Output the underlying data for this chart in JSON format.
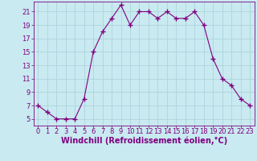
{
  "x": [
    0,
    1,
    2,
    3,
    4,
    5,
    6,
    7,
    8,
    9,
    10,
    11,
    12,
    13,
    14,
    15,
    16,
    17,
    18,
    19,
    20,
    21,
    22,
    23
  ],
  "y": [
    7,
    6,
    5,
    5,
    5,
    8,
    15,
    18,
    20,
    22,
    19,
    21,
    21,
    20,
    21,
    20,
    20,
    21,
    19,
    14,
    11,
    10,
    8,
    7
  ],
  "line_color": "#800080",
  "marker": "+",
  "marker_color": "#800080",
  "bg_color": "#c8eaf0",
  "grid_color": "#aed4dc",
  "xlabel": "Windchill (Refroidissement éolien,°C)",
  "xlabel_color": "#800080",
  "tick_color": "#800080",
  "spine_color": "#800080",
  "xlim": [
    -0.5,
    23.5
  ],
  "ylim": [
    4,
    22.5
  ],
  "yticks": [
    5,
    7,
    9,
    11,
    13,
    15,
    17,
    19,
    21
  ],
  "xticks": [
    0,
    1,
    2,
    3,
    4,
    5,
    6,
    7,
    8,
    9,
    10,
    11,
    12,
    13,
    14,
    15,
    16,
    17,
    18,
    19,
    20,
    21,
    22,
    23
  ],
  "xlabel_fontsize": 7,
  "tick_fontsize": 6,
  "line_width": 0.8,
  "marker_size": 4
}
